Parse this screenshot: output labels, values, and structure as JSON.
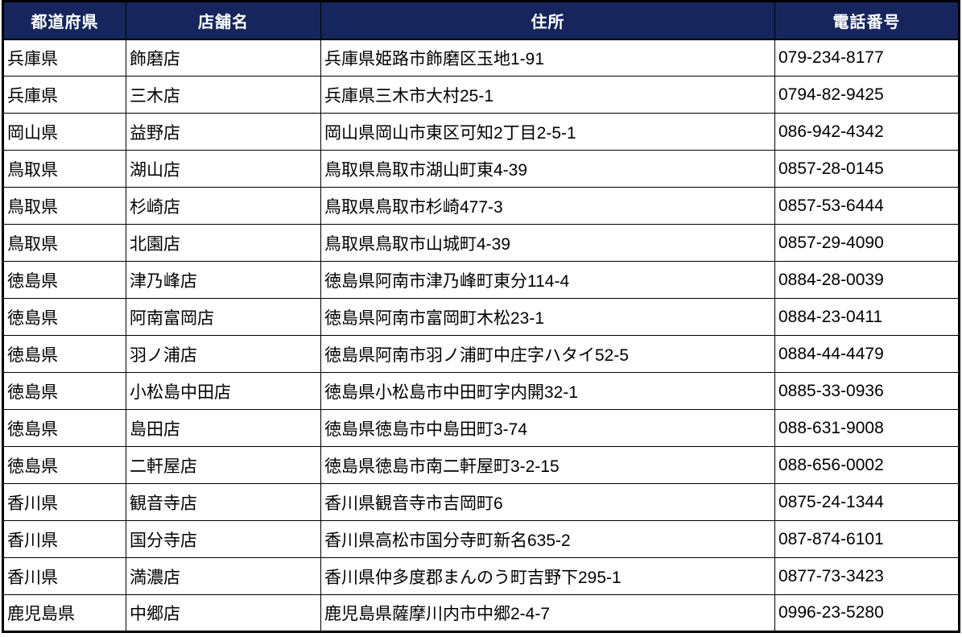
{
  "colors": {
    "header_bg": "#16265c",
    "header_text": "#ffffff",
    "body_text": "#000000",
    "grid_line": "#000000"
  },
  "table": {
    "columns": [
      "都道府県",
      "店舗名",
      "住所",
      "電話番号"
    ],
    "rows": [
      [
        "兵庫県",
        "飾磨店",
        "兵庫県姫路市飾磨区玉地1-91",
        "079-234-8177"
      ],
      [
        "兵庫県",
        "三木店",
        "兵庫県三木市大村25-1",
        "0794-82-9425"
      ],
      [
        "岡山県",
        "益野店",
        "岡山県岡山市東区可知2丁目2-5-1",
        "086-942-4342"
      ],
      [
        "鳥取県",
        "湖山店",
        "鳥取県鳥取市湖山町東4-39",
        "0857-28-0145"
      ],
      [
        "鳥取県",
        "杉崎店",
        "鳥取県鳥取市杉崎477-3",
        "0857-53-6444"
      ],
      [
        "鳥取県",
        "北園店",
        "鳥取県鳥取市山城町4-39",
        "0857-29-4090"
      ],
      [
        "徳島県",
        "津乃峰店",
        "徳島県阿南市津乃峰町東分114-4",
        "0884-28-0039"
      ],
      [
        "徳島県",
        "阿南富岡店",
        "徳島県阿南市富岡町木松23-1",
        "0884-23-0411"
      ],
      [
        "徳島県",
        "羽ノ浦店",
        "徳島県阿南市羽ノ浦町中庄字ハタイ52-5",
        "0884-44-4479"
      ],
      [
        "徳島県",
        "小松島中田店",
        "徳島県小松島市中田町字内開32-1",
        "0885-33-0936"
      ],
      [
        "徳島県",
        "島田店",
        "徳島県徳島市中島田町3-74",
        "088-631-9008"
      ],
      [
        "徳島県",
        "二軒屋店",
        "徳島県徳島市南二軒屋町3-2-15",
        "088-656-0002"
      ],
      [
        "香川県",
        "観音寺店",
        "香川県観音寺市吉岡町6",
        "0875-24-1344"
      ],
      [
        "香川県",
        "国分寺店",
        "香川県高松市国分寺町新名635-2",
        "087-874-6101"
      ],
      [
        "香川県",
        "満濃店",
        "香川県仲多度郡まんのう町吉野下295-1",
        "0877-73-3423"
      ],
      [
        "鹿児島県",
        "中郷店",
        "鹿児島県薩摩川内市中郷2-4-7",
        "0996-23-5280"
      ]
    ]
  }
}
